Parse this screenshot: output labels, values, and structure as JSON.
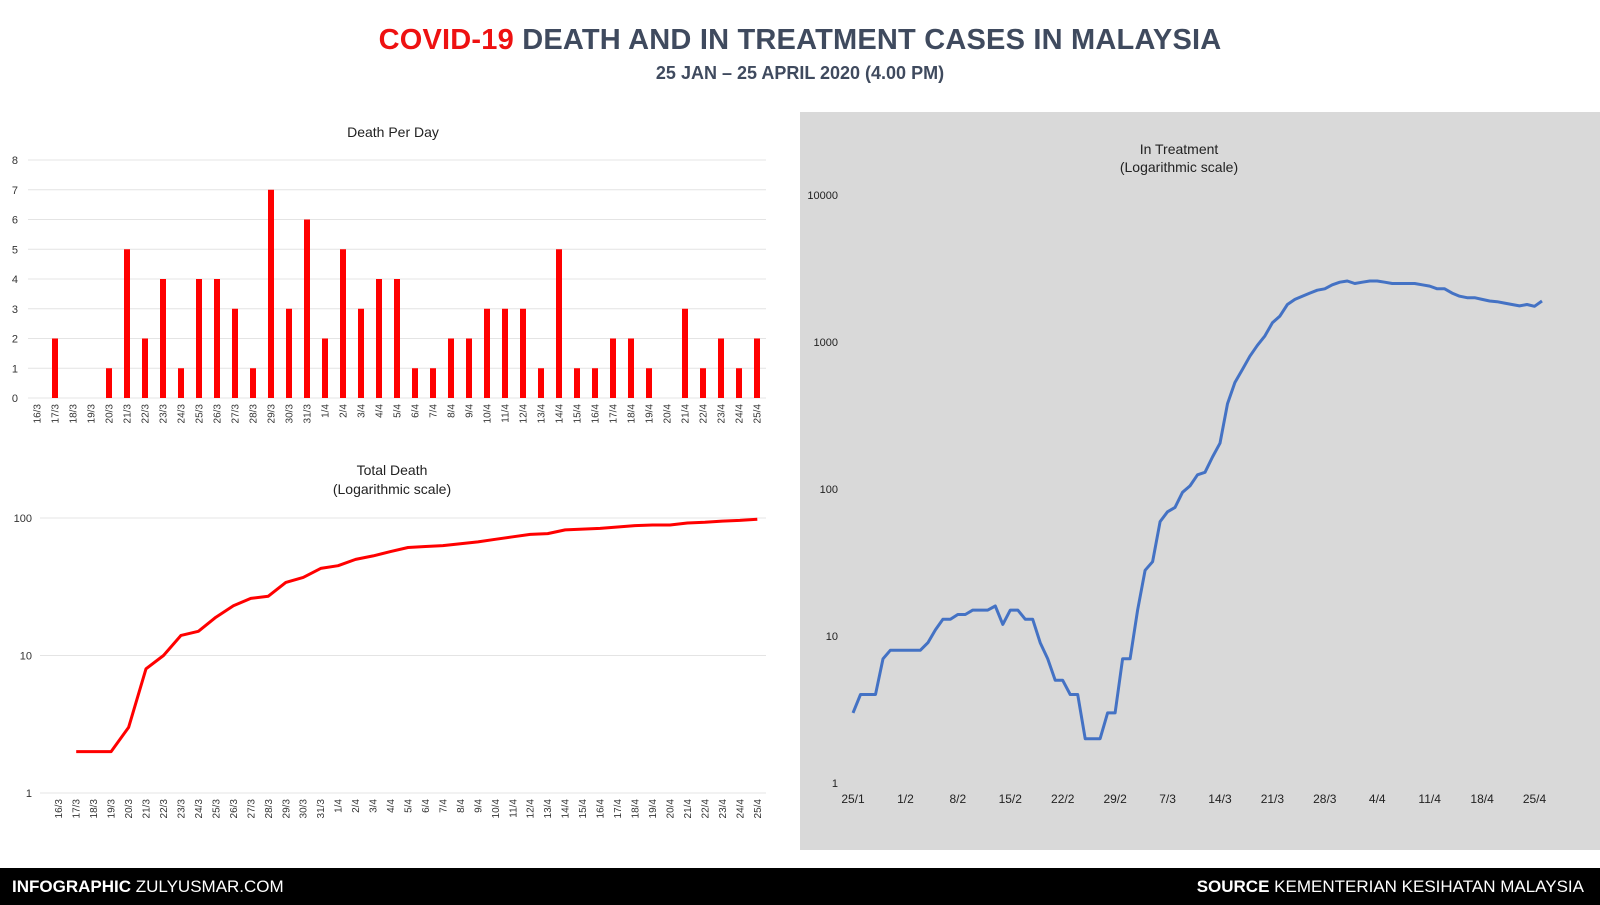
{
  "header": {
    "title_highlight": "COVID-19",
    "title_rest": "DEATH AND IN TREATMENT CASES IN MALAYSIA",
    "subtitle": "25 JAN – 25 APRIL 2020 (4.00 PM)"
  },
  "footer": {
    "left_bold": "INFOGRAPHIC",
    "left_text": " ZULYUSMAR.COM",
    "right_bold": "SOURCE",
    "right_text": " KEMENTERIAN KESIHATAN MALAYSIA"
  },
  "colors": {
    "death": "#ff0000",
    "treatment": "#4472c4",
    "title": "#3f4a5e",
    "panel": "#d9d9d9"
  },
  "chart_data": [
    {
      "id": "deaths-per-day",
      "type": "bar",
      "title": "Death Per Day",
      "xlabel": "",
      "ylabel": "",
      "ylim": [
        0,
        8
      ],
      "yticks": [
        0,
        1,
        2,
        3,
        4,
        5,
        6,
        7,
        8
      ],
      "grid": true,
      "categories": [
        "16/3",
        "17/3",
        "18/3",
        "19/3",
        "20/3",
        "21/3",
        "22/3",
        "23/3",
        "24/3",
        "25/3",
        "26/3",
        "27/3",
        "28/3",
        "29/3",
        "30/3",
        "31/3",
        "1/4",
        "2/4",
        "3/4",
        "4/4",
        "5/4",
        "6/4",
        "7/4",
        "8/4",
        "9/4",
        "10/4",
        "11/4",
        "12/4",
        "13/4",
        "14/4",
        "15/4",
        "16/4",
        "17/4",
        "18/4",
        "19/4",
        "20/4",
        "21/4",
        "22/4",
        "23/4",
        "24/4",
        "25/4"
      ],
      "values": [
        0,
        2,
        0,
        0,
        1,
        5,
        2,
        4,
        1,
        4,
        4,
        3,
        1,
        7,
        3,
        6,
        2,
        5,
        3,
        4,
        4,
        1,
        1,
        2,
        2,
        3,
        3,
        3,
        1,
        5,
        1,
        1,
        2,
        2,
        1,
        0,
        3,
        1,
        2,
        1,
        2
      ]
    },
    {
      "id": "total-deaths",
      "type": "line",
      "title": "Total Death",
      "subtitle": "(Logarithmic scale)",
      "yscale": "log",
      "ylim": [
        1,
        100
      ],
      "yticks": [
        "1",
        "10",
        "100"
      ],
      "grid": true,
      "categories": [
        "16/3",
        "17/3",
        "18/3",
        "19/3",
        "20/3",
        "21/3",
        "22/3",
        "23/3",
        "24/3",
        "25/3",
        "26/3",
        "27/3",
        "28/3",
        "29/3",
        "30/3",
        "31/3",
        "1/4",
        "2/4",
        "3/4",
        "4/4",
        "5/4",
        "6/4",
        "7/4",
        "8/4",
        "9/4",
        "10/4",
        "11/4",
        "12/4",
        "13/4",
        "14/4",
        "15/4",
        "16/4",
        "17/4",
        "18/4",
        "19/4",
        "20/4",
        "21/4",
        "22/4",
        "23/4",
        "24/4",
        "25/4"
      ],
      "values": [
        null,
        2,
        2,
        2,
        3,
        8,
        10,
        14,
        15,
        19,
        23,
        26,
        27,
        34,
        37,
        43,
        45,
        50,
        53,
        57,
        61,
        62,
        63,
        65,
        67,
        70,
        73,
        76,
        77,
        82,
        83,
        84,
        86,
        88,
        89,
        89,
        92,
        93,
        95,
        96,
        98
      ]
    },
    {
      "id": "in-treatment",
      "type": "line",
      "title": "In Treatment",
      "subtitle": "(Logarithmic scale)",
      "yscale": "log",
      "ylim": [
        1,
        10000
      ],
      "yticks": [
        "1",
        "10",
        "100",
        "1000",
        "10000"
      ],
      "grid": false,
      "start_date": "25/1",
      "xtick_labels": [
        "25/1",
        "1/2",
        "8/2",
        "15/2",
        "22/2",
        "29/2",
        "7/3",
        "14/3",
        "21/3",
        "28/3",
        "4/4",
        "11/4",
        "18/4",
        "25/4"
      ],
      "values": [
        3,
        4,
        4,
        4,
        7,
        8,
        8,
        8,
        8,
        8,
        9,
        11,
        13,
        13,
        14,
        14,
        15,
        15,
        15,
        16,
        12,
        15,
        15,
        13,
        13,
        9,
        7,
        5,
        5,
        4,
        4,
        2,
        2,
        2,
        3,
        3,
        7,
        7,
        15,
        28,
        32,
        60,
        70,
        75,
        95,
        105,
        125,
        130,
        165,
        205,
        380,
        530,
        650,
        800,
        950,
        1100,
        1350,
        1500,
        1800,
        1950,
        2050,
        2150,
        2250,
        2300,
        2450,
        2550,
        2600,
        2500,
        2550,
        2600,
        2600,
        2550,
        2500,
        2500,
        2500,
        2500,
        2450,
        2400,
        2300,
        2300,
        2150,
        2050,
        2000,
        2000,
        1950,
        1900,
        1880,
        1840,
        1800,
        1760,
        1800,
        1750,
        1900
      ]
    }
  ]
}
